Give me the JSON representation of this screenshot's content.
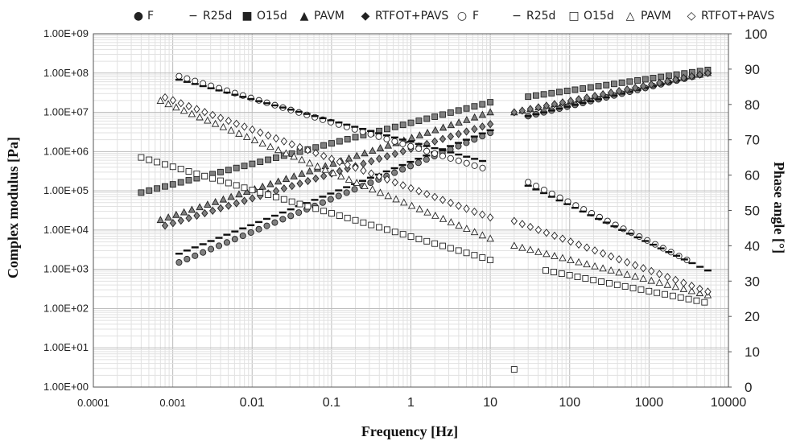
{
  "chart_data": {
    "type": "scatter",
    "title": "",
    "xlabel": "Frequency [Hz]",
    "ylabel": "Complex modulus [Pa]",
    "y2label": "Phase angle [°]",
    "xscale": "log",
    "yscale": "log",
    "xlim": [
      0.0001,
      10000
    ],
    "ylim": [
      1,
      1000000000
    ],
    "y2lim": [
      0,
      100
    ],
    "grid": true,
    "legend_position": "top",
    "x_tick_labels": [
      "0.0001",
      "0.001",
      "0.01",
      "0.1",
      "1",
      "10",
      "100",
      "1000",
      "10000"
    ],
    "y_tick_labels": [
      "1.00E+00",
      "1.00E+01",
      "1.00E+02",
      "1.00E+03",
      "1.00E+04",
      "1.00E+05",
      "1.00E+06",
      "1.00E+07",
      "1.00E+08",
      "1.00E+09"
    ],
    "y2_tick_labels": [
      "0",
      "10",
      "20",
      "30",
      "40",
      "50",
      "60",
      "70",
      "80",
      "90",
      "100"
    ],
    "series": [
      {
        "name": "F",
        "glyph": "●",
        "marker": "circle",
        "fill": "#808080",
        "axis": "left",
        "x_range": [
          0.0012,
          10
        ],
        "y_range": [
          1500,
          3000000
        ],
        "x_range_2": [
          30,
          5500
        ],
        "y_range_2": [
          8000000,
          100000000
        ]
      },
      {
        "name": "R25d",
        "glyph": "−",
        "marker": "dash",
        "fill": "#000000",
        "axis": "left",
        "x_range": [
          0.0012,
          10
        ],
        "y_range": [
          2500,
          3500000
        ],
        "x_range_2": [
          30,
          5500
        ],
        "y_range_2": [
          8000000,
          100000000
        ]
      },
      {
        "name": "O15d",
        "glyph": "■",
        "marker": "square",
        "fill": "#808080",
        "axis": "left",
        "x_range": [
          0.0004,
          10
        ],
        "y_range": [
          90000,
          18000000
        ],
        "x_range_2": [
          30,
          5500
        ],
        "y_range_2": [
          25000000,
          120000000
        ]
      },
      {
        "name": "PAVM",
        "glyph": "▲",
        "marker": "triangle",
        "fill": "#808080",
        "axis": "left",
        "x_range": [
          0.0007,
          10
        ],
        "y_range": [
          18000,
          10000000
        ],
        "x_range_2": [
          20,
          5500
        ],
        "y_range_2": [
          10000000,
          100000000
        ]
      },
      {
        "name": "RTFOT+PAVS",
        "glyph": "◆",
        "marker": "diamond",
        "fill": "#808080",
        "axis": "left",
        "x_range": [
          0.0008,
          10
        ],
        "y_range": [
          13000,
          5000000
        ],
        "x_range_2": [
          20,
          5500
        ],
        "y_range_2": [
          10000000,
          100000000
        ]
      },
      {
        "name": "F",
        "glyph": "○",
        "marker": "circle",
        "fill": "none",
        "axis": "right",
        "x_range": [
          0.0012,
          8
        ],
        "y_range": [
          88,
          62
        ],
        "x_range_2": [
          30,
          3000
        ],
        "y_range_2": [
          58,
          36
        ]
      },
      {
        "name": "R25d",
        "glyph": "−",
        "marker": "dash",
        "fill": "#000000",
        "axis": "right",
        "x_range": [
          0.0012,
          8
        ],
        "y_range": [
          87,
          64
        ],
        "x_range_2": [
          30,
          5500
        ],
        "y_range_2": [
          57,
          33
        ]
      },
      {
        "name": "O15d",
        "glyph": "□",
        "marker": "square",
        "fill": "none",
        "axis": "right",
        "x_range": [
          0.0004,
          10
        ],
        "y_range": [
          65,
          36
        ],
        "x_range_2": [
          50,
          5000
        ],
        "y_range_2": [
          33,
          24
        ]
      },
      {
        "name": "PAVM",
        "glyph": "△",
        "marker": "triangle",
        "fill": "none",
        "axis": "right",
        "x_range": [
          0.0007,
          10
        ],
        "y_range": [
          81,
          42
        ],
        "x_range_2": [
          20,
          5500
        ],
        "y_range_2": [
          40,
          26
        ]
      },
      {
        "name": "RTFOT+PAVS",
        "glyph": "◇",
        "marker": "diamond",
        "fill": "none",
        "axis": "right",
        "x_range": [
          0.0008,
          10
        ],
        "y_range": [
          82,
          48
        ],
        "x_range_2": [
          20,
          5500
        ],
        "y_range_2": [
          47,
          27
        ]
      }
    ],
    "outliers": [
      {
        "series": "O15d",
        "axis": "right",
        "x": 20,
        "y": 5
      }
    ]
  }
}
